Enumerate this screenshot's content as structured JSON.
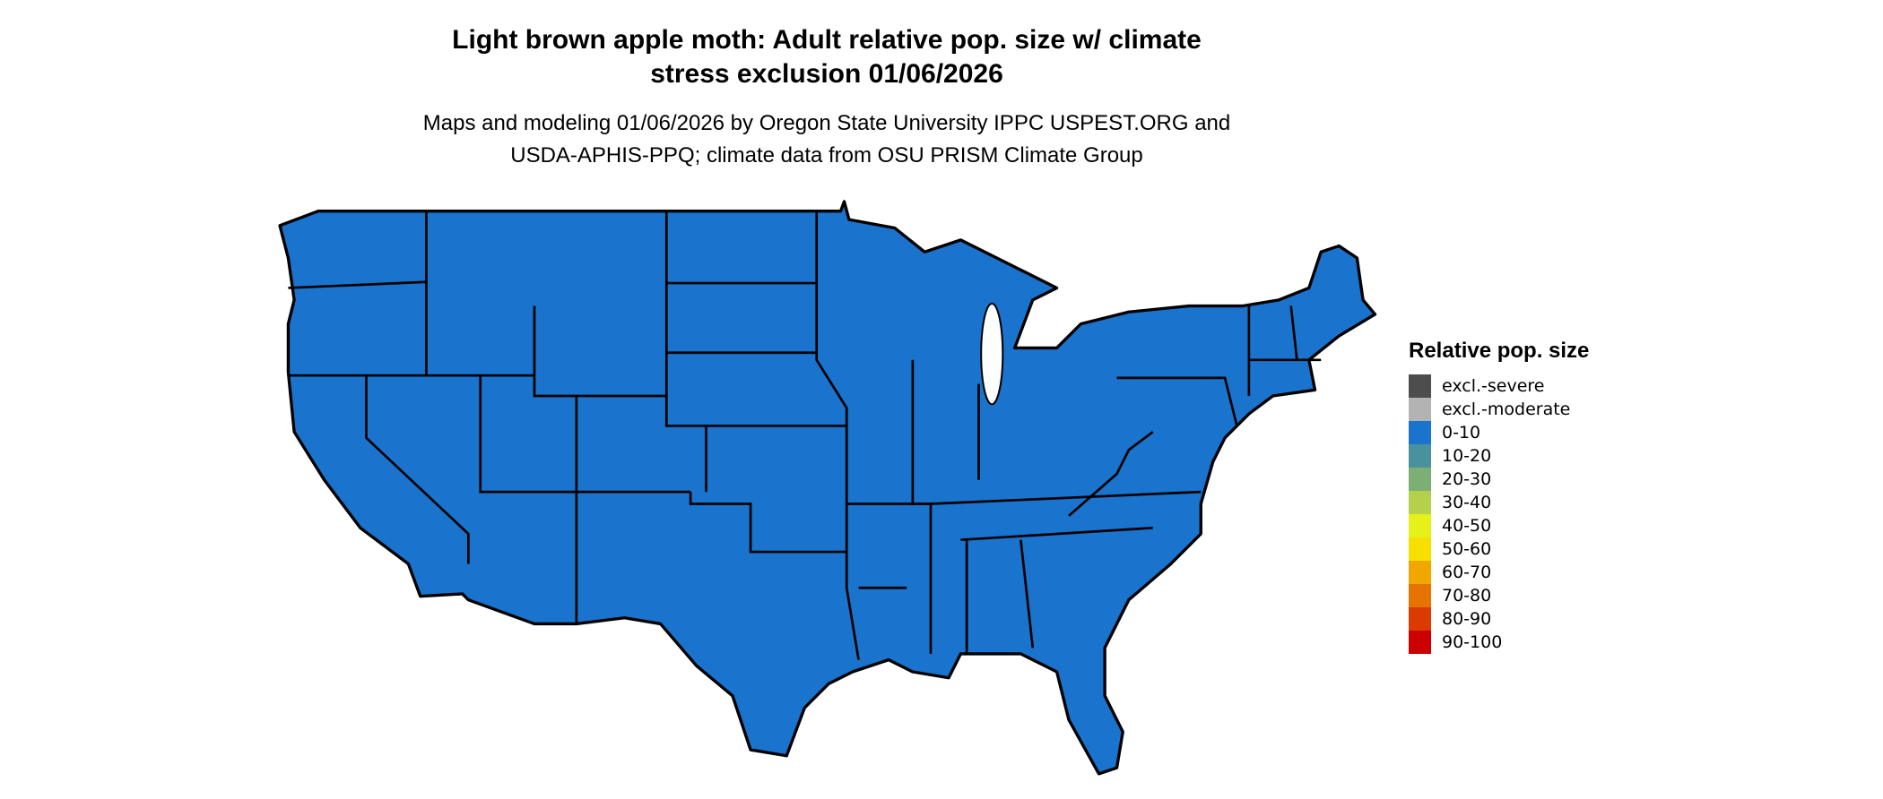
{
  "title": {
    "line1": "Light brown apple moth: Adult relative pop. size w/ climate",
    "line2": "stress exclusion 01/06/2026"
  },
  "subtitle": {
    "line1": "Maps and modeling 01/06/2026 by Oregon State University IPPC USPEST.ORG and",
    "line2": "USDA-APHIS-PPQ; climate data from OSU PRISM Climate Group"
  },
  "map": {
    "region": "Contiguous United States",
    "fill_class": "0-10",
    "fill_color": "#1a73cc",
    "border_color": "#000000"
  },
  "legend": {
    "title": "Relative pop. size",
    "items": [
      {
        "label": "excl.-severe",
        "color": "#4d4d4d"
      },
      {
        "label": "excl.-moderate",
        "color": "#b3b3b3"
      },
      {
        "label": "0-10",
        "color": "#1a73cc"
      },
      {
        "label": "10-20",
        "color": "#4a919e"
      },
      {
        "label": "20-30",
        "color": "#7daf75"
      },
      {
        "label": "30-40",
        "color": "#b3d14a"
      },
      {
        "label": "40-50",
        "color": "#e6f019"
      },
      {
        "label": "50-60",
        "color": "#f7e000"
      },
      {
        "label": "60-70",
        "color": "#f0a800"
      },
      {
        "label": "70-80",
        "color": "#e67300"
      },
      {
        "label": "80-90",
        "color": "#db3a00"
      },
      {
        "label": "90-100",
        "color": "#cc0000"
      }
    ]
  }
}
